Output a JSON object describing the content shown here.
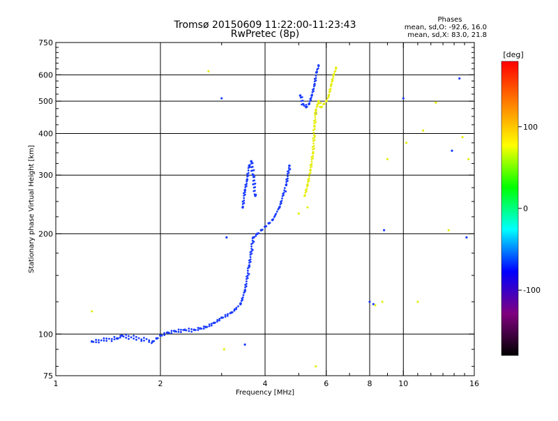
{
  "chart_data": {
    "type": "scatter",
    "title": "Tromsø 20150609 11:22:00-11:23:43",
    "subtitle": "RwPretec (8p)",
    "xlabel": "Frequency [MHz]",
    "ylabel": "Stationary phase Virtual Height [km]",
    "x_scale": "log",
    "y_scale": "log",
    "xlim": [
      1,
      16
    ],
    "ylim": [
      75,
      750
    ],
    "x_ticks": [
      1,
      2,
      4,
      6,
      8,
      10,
      16
    ],
    "y_ticks": [
      75,
      100,
      200,
      300,
      400,
      500,
      600,
      750
    ],
    "grid": true,
    "info": {
      "heading": "Phases",
      "line_o": "mean, sd,O: -92.6, 16.0",
      "line_x": "mean, sd,X:  83.0, 21.8"
    },
    "colorbar": {
      "label": "[deg]",
      "range": [
        -180,
        180
      ],
      "ticks": [
        100,
        0,
        -100
      ],
      "colors": [
        "#ff0000",
        "#ff8000",
        "#ffff00",
        "#00ff00",
        "#00ffff",
        "#0000ff",
        "#800080",
        "#000000"
      ]
    },
    "series": [
      {
        "name": "O",
        "segments": [
          {
            "x": [
              1.27,
              1.5,
              1.55,
              1.9,
              1.95,
              2.0,
              2.1,
              2.2,
              2.35,
              2.5,
              2.6,
              2.7,
              2.85,
              3.0,
              3.2,
              3.4,
              3.5,
              3.6,
              3.7,
              3.8,
              3.9,
              4.0,
              4.1,
              4.2,
              4.4,
              4.6,
              4.7
            ],
            "y": [
              95,
              97,
              99,
              95,
              97,
              99,
              101,
              102,
              103,
              103,
              104,
              105,
              108,
              112,
              116,
              123,
              135,
              160,
              195,
              200,
              205,
              210,
              215,
              220,
              240,
              280,
              320
            ]
          },
          {
            "x": [
              3.45,
              3.5,
              3.55,
              3.6,
              3.65,
              3.7,
              3.75
            ],
            "y": [
              240,
              270,
              290,
              320,
              330,
              300,
              260
            ]
          },
          {
            "x": [
              5.05,
              5.15,
              5.25,
              5.35,
              5.45,
              5.55,
              5.62,
              5.7
            ],
            "y": [
              520,
              490,
              480,
              490,
              520,
              560,
              610,
              640
            ]
          }
        ],
        "scattered": {
          "x": [
            3.0,
            3.1,
            3.5,
            5.6,
            8.0,
            8.2,
            8.8,
            10.0,
            13.8,
            14.5,
            15.2
          ],
          "y": [
            510,
            195,
            93,
            460,
            125,
            123,
            205,
            510,
            355,
            585,
            195
          ]
        }
      },
      {
        "name": "X",
        "segments": [
          {
            "x": [
              5.2,
              5.3,
              5.4,
              5.5,
              5.55,
              5.6,
              5.7,
              5.8,
              5.9,
              6.0,
              6.1,
              6.2,
              6.3,
              6.4
            ],
            "y": [
              260,
              280,
              310,
              350,
              420,
              470,
              500,
              480,
              490,
              500,
              520,
              560,
              600,
              630
            ]
          }
        ],
        "scattered": {
          "x": [
            1.27,
            2.75,
            3.05,
            5.0,
            5.3,
            5.6,
            8.3,
            8.7,
            9.0,
            10.2,
            11.0,
            11.4,
            12.4,
            13.5,
            14.8,
            15.4
          ],
          "y": [
            117,
            615,
            90,
            230,
            240,
            80,
            122,
            125,
            335,
            375,
            125,
            408,
            495,
            205,
            390,
            335
          ]
        }
      }
    ]
  }
}
